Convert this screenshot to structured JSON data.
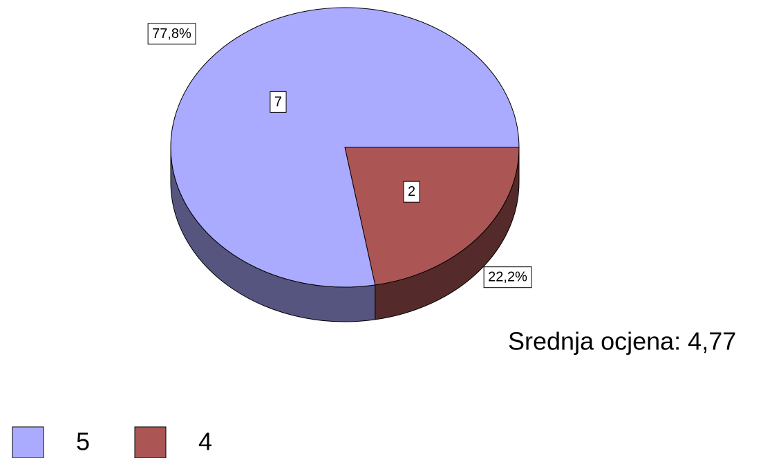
{
  "chart_data": {
    "type": "pie",
    "categories": [
      "5",
      "4"
    ],
    "values": [
      7,
      2
    ],
    "percent_labels": [
      "77,8%",
      "22,2%"
    ],
    "colors": [
      "#aaaaff",
      "#ab5555"
    ],
    "side_colors": [
      "#55557f",
      "#552a2a"
    ],
    "annotation": "Srednja ocjena: 4,77",
    "legend": "bottom-left"
  }
}
